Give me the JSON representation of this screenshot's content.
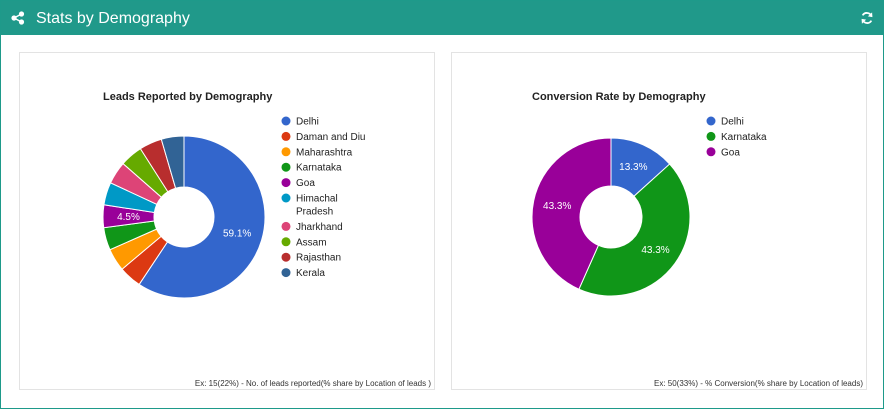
{
  "header": {
    "title": "Stats by Demography",
    "icon": "share-nodes-icon",
    "refresh_icon": "refresh-icon",
    "color": "#20998a"
  },
  "chart_data": [
    {
      "type": "pie",
      "title": "Leads Reported by Demography",
      "donut": true,
      "legend_position": "right",
      "slices": [
        {
          "label": "Delhi",
          "value": 59.1,
          "color": "#3366cc",
          "value_label": "59.1%"
        },
        {
          "label": "Daman and Diu",
          "value": 4.5,
          "color": "#dc3912",
          "value_label": ""
        },
        {
          "label": "Maharashtra",
          "value": 4.5,
          "color": "#ff9900",
          "value_label": ""
        },
        {
          "label": "Karnataka",
          "value": 4.5,
          "color": "#109618",
          "value_label": ""
        },
        {
          "label": "Goa",
          "value": 4.5,
          "color": "#990099",
          "value_label": "4.5%"
        },
        {
          "label": "Himachal Pradesh",
          "value": 4.5,
          "color": "#0099c6",
          "value_label": ""
        },
        {
          "label": "Jharkhand",
          "value": 4.5,
          "color": "#dd4477",
          "value_label": ""
        },
        {
          "label": "Assam",
          "value": 4.5,
          "color": "#66aa00",
          "value_label": ""
        },
        {
          "label": "Rajasthan",
          "value": 4.5,
          "color": "#b82e2e",
          "value_label": ""
        },
        {
          "label": "Kerala",
          "value": 4.5,
          "color": "#316395",
          "value_label": ""
        }
      ],
      "footnote": "Ex: 15(22%) - No. of leads reported(% share by Location of leads )"
    },
    {
      "type": "pie",
      "title": "Conversion Rate by Demography",
      "donut": true,
      "legend_position": "right",
      "slices": [
        {
          "label": "Delhi",
          "value": 13.3,
          "color": "#3366cc",
          "value_label": "13.3%"
        },
        {
          "label": "Karnataka",
          "value": 43.3,
          "color": "#109618",
          "value_label": "43.3%"
        },
        {
          "label": "Goa",
          "value": 43.3,
          "color": "#990099",
          "value_label": "43.3%"
        }
      ],
      "footnote": "Ex: 50(33%) - % Conversion(% share by Location of leads)"
    }
  ]
}
